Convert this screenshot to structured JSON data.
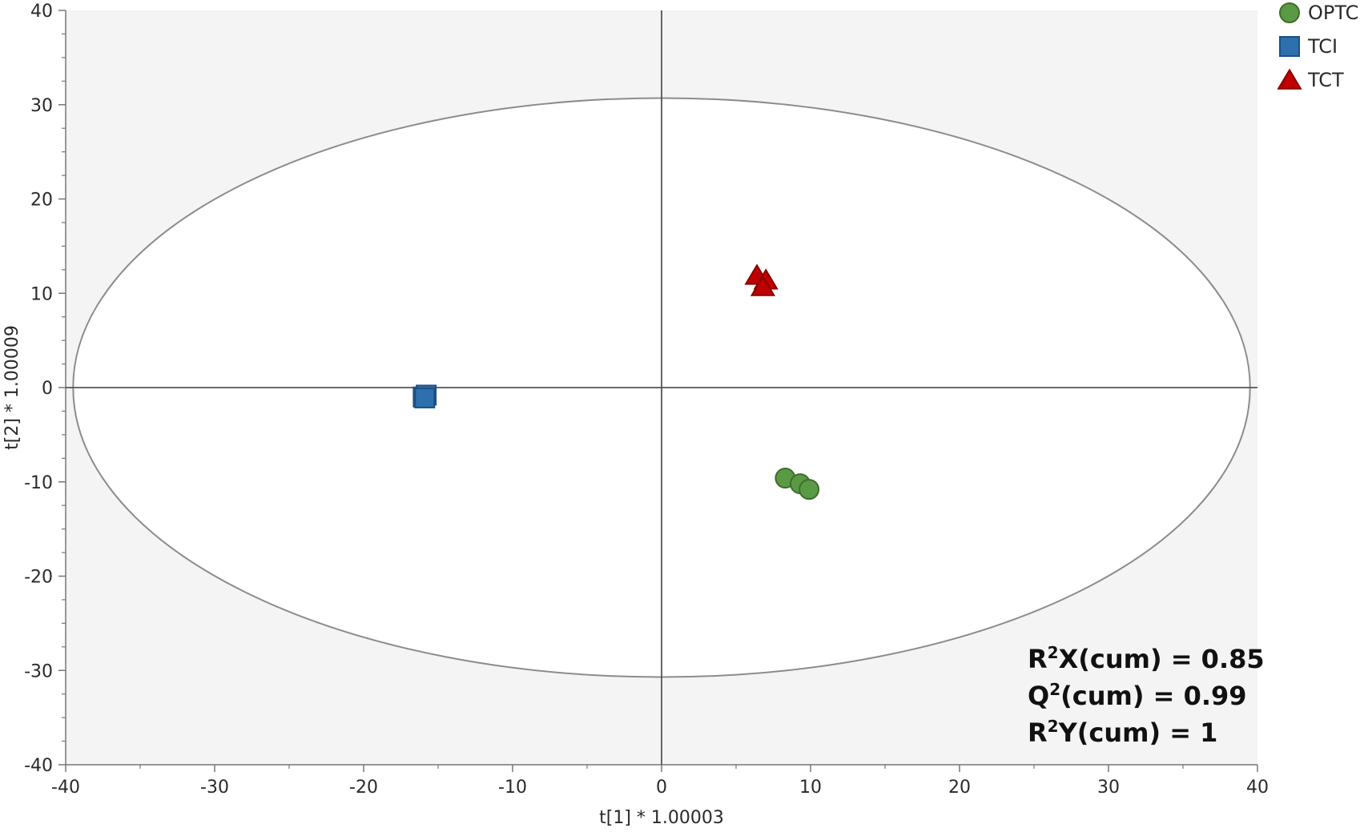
{
  "chart_data": {
    "type": "scatter",
    "xlabel": "t[1] * 1.00003",
    "ylabel": "t[2] * 1.00009",
    "xlim": [
      -40,
      40
    ],
    "ylim": [
      -40,
      40
    ],
    "xticks": [
      -40,
      -30,
      -20,
      -10,
      0,
      10,
      20,
      30,
      40
    ],
    "yticks": [
      -40,
      -30,
      -20,
      -10,
      0,
      10,
      20,
      30,
      40
    ],
    "legend_position": "top-right",
    "ellipse": {
      "cx": 0,
      "cy": 0,
      "rx": 39.5,
      "ry": 30.7
    },
    "series": [
      {
        "name": "OPTC",
        "marker": "circle",
        "color": "#5a9a44",
        "points": [
          [
            8.3,
            -9.6
          ],
          [
            9.3,
            -10.2
          ],
          [
            9.9,
            -10.8
          ]
        ]
      },
      {
        "name": "TCI",
        "marker": "square",
        "color": "#2e6fad",
        "points": [
          [
            -16.0,
            -1.0
          ],
          [
            -15.8,
            -0.8
          ],
          [
            -15.9,
            -1.1
          ]
        ]
      },
      {
        "name": "TCT",
        "marker": "triangle",
        "color": "#c00000",
        "points": [
          [
            6.4,
            11.9
          ],
          [
            7.0,
            11.4
          ],
          [
            6.8,
            10.7
          ]
        ]
      }
    ]
  },
  "stats": {
    "r2x": {
      "base": "R",
      "sup": "2",
      "rest": "X(cum) = 0.85"
    },
    "q2": {
      "base": "Q",
      "sup": "2",
      "rest": "(cum) = 0.99"
    },
    "r2y": {
      "base": "R",
      "sup": "2",
      "rest": "Y(cum) = 1"
    }
  }
}
